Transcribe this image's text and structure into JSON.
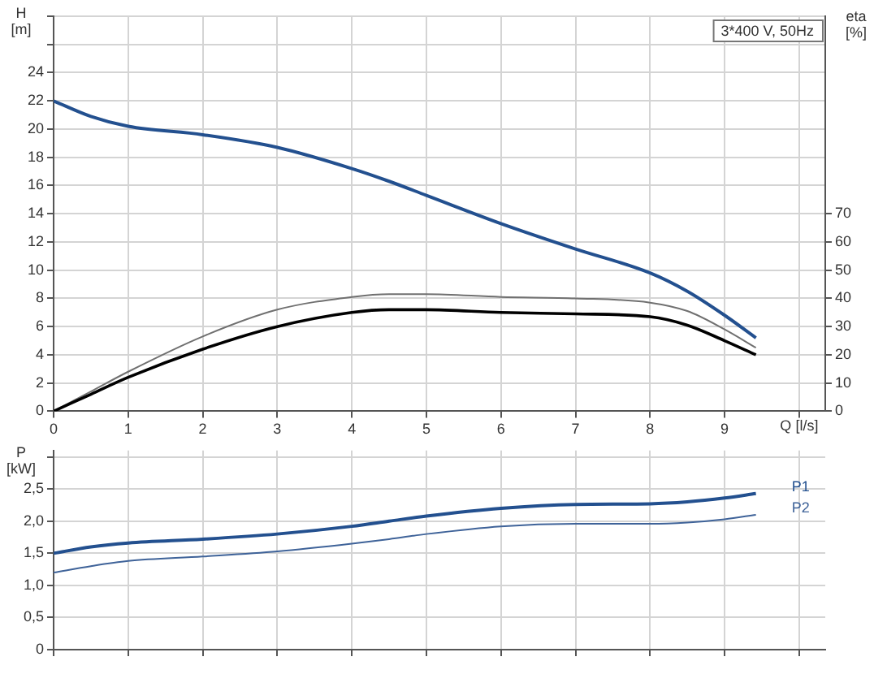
{
  "chart_data": [
    {
      "type": "line",
      "ylabel": "H [m]",
      "y2label": "eta [%]",
      "xlabel": "Q [l/s]",
      "annotations": [
        "3*400 V, 50Hz"
      ],
      "grid": true,
      "legend": false,
      "marker": "none",
      "line_style": "solid",
      "x": [
        0,
        0.5,
        1,
        2,
        3,
        4,
        4.5,
        5,
        6,
        7,
        8,
        8.5,
        9,
        9.42
      ],
      "xlim": [
        0,
        10.35
      ],
      "xticks": [
        0,
        1,
        2,
        3,
        4,
        5,
        6,
        7,
        8,
        9,
        {
          "value": 10,
          "label": null
        }
      ],
      "ylim": [
        0,
        28
      ],
      "yticks": [
        0,
        2,
        4,
        6,
        8,
        10,
        12,
        14,
        16,
        18,
        20,
        22,
        24,
        {
          "value": 26,
          "label": null
        },
        {
          "value": 28,
          "label": null
        }
      ],
      "y2lim": [
        0,
        140
      ],
      "y2ticks": [
        0,
        10,
        20,
        30,
        40,
        50,
        60,
        70
      ],
      "series": [
        {
          "color": "#23508f",
          "values": [
            22,
            20.9,
            20.2,
            19.6,
            18.7,
            17.2,
            16.3,
            15.3,
            13.3,
            11.5,
            9.8,
            8.5,
            6.8,
            5.2
          ]
        },
        {
          "color": "#000000",
          "axis": "y2",
          "values": [
            0,
            6,
            12,
            22,
            30,
            35,
            36,
            36,
            35,
            34.5,
            33.5,
            30.5,
            25,
            20
          ]
        },
        {
          "color": "#707070",
          "axis": "y2",
          "values": [
            0,
            7,
            14,
            26.5,
            36,
            40.5,
            41.5,
            41.5,
            40.5,
            40,
            38.5,
            35.5,
            29,
            22.5
          ]
        }
      ]
    },
    {
      "type": "line",
      "ylabel": "P [kW]",
      "grid": true,
      "legend": false,
      "marker": "none",
      "line_style": "solid",
      "tick_labels": "y",
      "x": [
        0,
        0.5,
        1,
        2,
        3,
        4,
        4.5,
        5,
        6,
        7,
        8,
        8.5,
        9,
        9.42
      ],
      "xlim": [
        0,
        10.35
      ],
      "xticks": [
        0,
        1,
        2,
        3,
        4,
        5,
        6,
        7,
        8,
        9,
        10
      ],
      "ylim": [
        0,
        3.1
      ],
      "yticks": [
        0,
        {
          "value": 0.5,
          "label": "0,5"
        },
        {
          "value": 1,
          "label": "1,0"
        },
        {
          "value": 1.5,
          "label": "1,5"
        },
        {
          "value": 2,
          "label": "2,0"
        },
        {
          "value": 2.5,
          "label": "2,5"
        },
        {
          "value": 3,
          "label": null
        }
      ],
      "series": [
        {
          "name": "P1",
          "color": "#23508f",
          "values": [
            1.5,
            1.6,
            1.66,
            1.72,
            1.8,
            1.92,
            2,
            2.08,
            2.2,
            2.26,
            2.27,
            2.3,
            2.36,
            2.43
          ]
        },
        {
          "name": "P2",
          "color": "#3f6399",
          "values": [
            1.2,
            1.3,
            1.38,
            1.45,
            1.53,
            1.65,
            1.72,
            1.8,
            1.92,
            1.96,
            1.96,
            1.98,
            2.03,
            2.1
          ]
        }
      ]
    }
  ]
}
